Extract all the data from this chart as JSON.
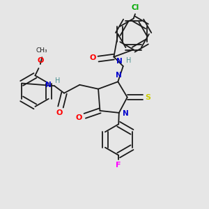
{
  "bg_color": "#e6e6e6",
  "bond_color": "#1a1a1a",
  "colors": {
    "N": "#0000cc",
    "O": "#ff0000",
    "S": "#cccc00",
    "F": "#ff00ff",
    "Cl": "#00aa00",
    "H": "#4a9090",
    "C": "#1a1a1a"
  },
  "fig_size": [
    3.0,
    3.0
  ],
  "dpi": 100
}
